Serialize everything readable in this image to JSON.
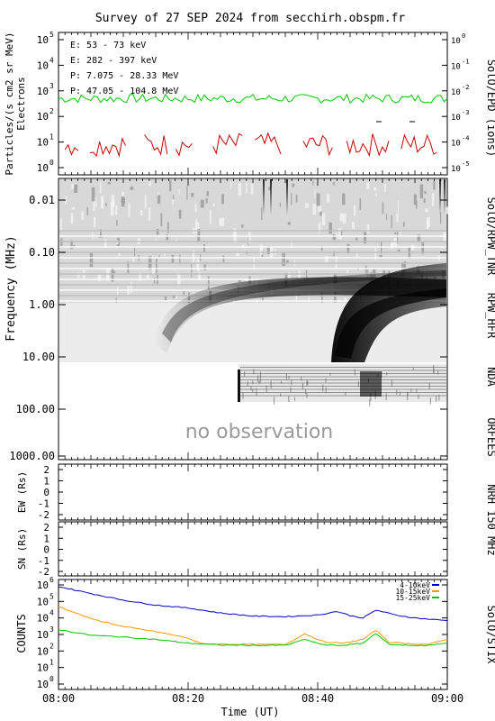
{
  "title": "Survey of 27 SEP 2024 from secchirh.obspm.fr",
  "panels": {
    "particles": {
      "ylabel": "Particles/(s cm2 sr MeV)",
      "ylabel2": "Electrons",
      "yticks_left": [
        "10",
        "10",
        "10",
        "10",
        "10",
        "10"
      ],
      "yticks_left_exp": [
        "5",
        "4",
        "3",
        "2",
        "1",
        "0"
      ],
      "yticks_right": [
        "10",
        "10",
        "10",
        "10",
        "10",
        "10"
      ],
      "yticks_right_exp": [
        "0",
        "-1",
        "-2",
        "-3",
        "-4",
        "-5"
      ],
      "right_label": "SolO/EPD (ions)",
      "legend": [
        {
          "text": "E: 53 - 73 keV",
          "color": "#00c800"
        },
        {
          "text": "E: 282 - 397 keV",
          "color": "#c80000"
        },
        {
          "text": "P: 7.075 - 28.33 MeV",
          "color": "#000000"
        },
        {
          "text": "P: 47.05 - 104.8 MeV",
          "color": "#0000c8"
        }
      ]
    },
    "radio": {
      "ylabel": "Frequency (MHz)",
      "yticks": [
        "0.01",
        "0.10",
        "1.00",
        "10.00",
        "100.00",
        "1000.00"
      ],
      "labels": [
        "SolO/RPW_TNR",
        "RPW_HFR",
        "NDA",
        "ORFEES"
      ],
      "no_observation": "no observation"
    },
    "nrh_ew": {
      "ylabel": "EW (Rs)",
      "yticks": [
        "2",
        "1",
        "0",
        "-1",
        "-2"
      ]
    },
    "nrh_sn": {
      "ylabel": "SN (Rs)",
      "yticks": [
        "2",
        "1",
        "0",
        "-1",
        "-2"
      ]
    },
    "nrh_label": "NRH 150 MHz",
    "stix": {
      "ylabel": "COUNTS",
      "right_label": "SolO/STIX",
      "yticks": [
        "10",
        "10",
        "10",
        "10",
        "10",
        "10",
        "10"
      ],
      "yticks_exp": [
        "6",
        "5",
        "4",
        "3",
        "2",
        "1",
        "0"
      ]
    }
  },
  "xaxis": {
    "label": "Time (UT)",
    "ticks": [
      "08:00",
      "08:20",
      "08:40",
      "09:00"
    ]
  },
  "chart_data": {
    "type": "line",
    "x_range_minutes": [
      0,
      60
    ],
    "stix_series": [
      {
        "name": "4-10keV",
        "color": "#0000c8",
        "x": [
          0,
          5,
          10,
          15,
          20,
          25,
          30,
          35,
          40,
          43,
          45,
          47,
          49,
          52,
          55,
          58,
          60
        ],
        "y": [
          800000,
          300000,
          120000,
          60000,
          40000,
          20000,
          13000,
          12000,
          15000,
          25000,
          14000,
          10000,
          30000,
          15000,
          10000,
          8000,
          7000
        ]
      },
      {
        "name": "10-15keV",
        "color": "#ff9900",
        "x": [
          0,
          5,
          10,
          15,
          20,
          22,
          25,
          30,
          35,
          38,
          41,
          44,
          47,
          49,
          51,
          54,
          57,
          60
        ],
        "y": [
          50000,
          9000,
          3000,
          1500,
          600,
          280,
          260,
          250,
          250,
          1100,
          350,
          300,
          500,
          1800,
          350,
          280,
          250,
          500
        ]
      },
      {
        "name": "15-25keV",
        "color": "#00c800",
        "x": [
          0,
          5,
          10,
          15,
          20,
          25,
          30,
          35,
          38,
          41,
          44,
          47,
          49,
          51,
          54,
          57,
          60
        ],
        "y": [
          2000,
          900,
          700,
          500,
          300,
          230,
          220,
          220,
          500,
          230,
          220,
          300,
          1200,
          250,
          220,
          220,
          300
        ]
      }
    ],
    "epd_series": [
      {
        "name": "E: 53 - 73 keV",
        "color": "#00c800",
        "level": 500
      },
      {
        "name": "E: 282 - 397 keV",
        "color": "#c80000",
        "level": 8
      }
    ]
  }
}
